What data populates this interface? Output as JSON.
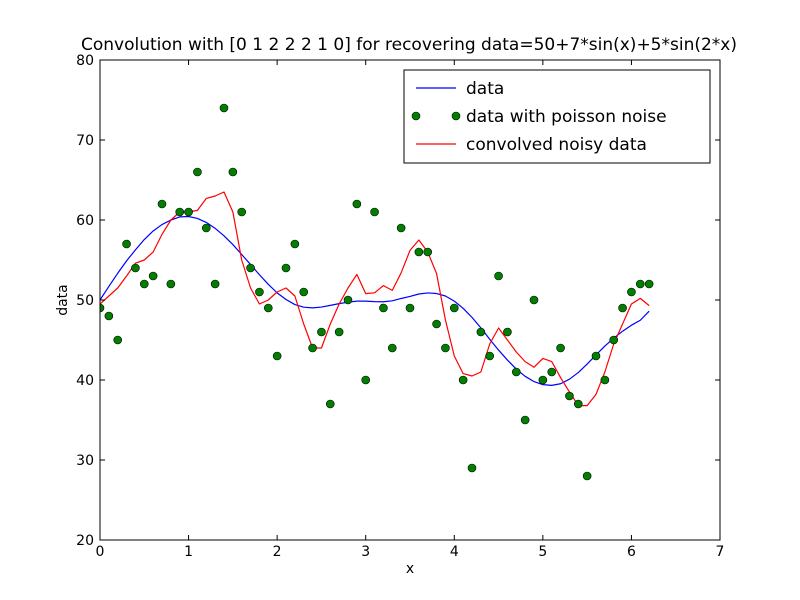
{
  "chart_data": {
    "type": "line",
    "title": "Convolution with [0 1 2 2 2 1 0] for recovering data=50+7*sin(x)+5*sin(2*x)",
    "xlabel": "x",
    "ylabel": "data",
    "xlim": [
      0,
      7
    ],
    "ylim": [
      20,
      80
    ],
    "xticks": [
      0,
      1,
      2,
      3,
      4,
      5,
      6,
      7
    ],
    "yticks": [
      20,
      30,
      40,
      50,
      60,
      70,
      80
    ],
    "grid": false,
    "legend_placement": "top-right",
    "series": [
      {
        "name": "data",
        "kind": "line",
        "color": "#0000ff",
        "x": [
          0.0,
          0.1,
          0.2,
          0.3,
          0.4,
          0.5,
          0.6,
          0.7,
          0.8,
          0.9,
          1.0,
          1.1,
          1.2,
          1.3,
          1.4,
          1.5,
          1.6,
          1.7,
          1.8,
          1.9,
          2.0,
          2.1,
          2.2,
          2.3,
          2.4,
          2.5,
          2.6,
          2.7,
          2.8,
          2.9,
          3.0,
          3.1,
          3.2,
          3.3,
          3.4,
          3.5,
          3.6,
          3.7,
          3.8,
          3.9,
          4.0,
          4.1,
          4.2,
          4.3,
          4.4,
          4.5,
          4.6,
          4.7,
          4.8,
          4.9,
          5.0,
          5.1,
          5.2,
          5.3,
          5.4,
          5.5,
          5.6,
          5.7,
          5.8,
          5.9,
          6.0,
          6.1,
          6.2
        ],
        "y": [
          50.0,
          51.69,
          53.34,
          54.89,
          56.27,
          57.56,
          58.63,
          59.43,
          60.0,
          60.39,
          60.44,
          60.2,
          59.7,
          58.96,
          58.02,
          56.93,
          55.69,
          54.43,
          53.16,
          51.96,
          50.89,
          50.06,
          49.43,
          49.1,
          49.02,
          49.12,
          49.33,
          49.55,
          49.73,
          49.86,
          49.86,
          49.8,
          49.78,
          49.9,
          50.19,
          50.45,
          50.75,
          50.88,
          50.81,
          50.5,
          49.86,
          48.96,
          47.83,
          46.52,
          45.1,
          43.74,
          42.49,
          41.37,
          40.46,
          39.8,
          39.42,
          39.33,
          39.53,
          40.1,
          40.93,
          41.99,
          43.13,
          44.24,
          45.23,
          46.1,
          46.85,
          47.47,
          48.6
        ]
      },
      {
        "name": "data with poisson noise",
        "kind": "scatter",
        "color": "#007f00",
        "x": [
          0.0,
          0.1,
          0.2,
          0.3,
          0.4,
          0.5,
          0.6,
          0.7,
          0.8,
          0.9,
          1.0,
          1.1,
          1.2,
          1.3,
          1.4,
          1.5,
          1.6,
          1.7,
          1.8,
          1.9,
          2.0,
          2.1,
          2.2,
          2.3,
          2.4,
          2.5,
          2.6,
          2.7,
          2.8,
          2.9,
          3.0,
          3.1,
          3.2,
          3.3,
          3.4,
          3.5,
          3.6,
          3.7,
          3.8,
          3.9,
          4.0,
          4.1,
          4.2,
          4.3,
          4.4,
          4.5,
          4.6,
          4.7,
          4.8,
          4.9,
          5.0,
          5.1,
          5.2,
          5.3,
          5.4,
          5.5,
          5.6,
          5.7,
          5.8,
          5.9,
          6.0,
          6.1,
          6.2
        ],
        "y": [
          49,
          48,
          45,
          57,
          54,
          52,
          53,
          62,
          52,
          61,
          61,
          66,
          59,
          52,
          74,
          66,
          61,
          54,
          51,
          49,
          43,
          54,
          57,
          51,
          44,
          46,
          37,
          46,
          50,
          62,
          40,
          61,
          49,
          44,
          59,
          49,
          56,
          56,
          47,
          44,
          49,
          40,
          29,
          46,
          43,
          53,
          46,
          41,
          35,
          50,
          40,
          41,
          44,
          38,
          37,
          28,
          43,
          40,
          45,
          49,
          51,
          52,
          52
        ]
      },
      {
        "name": "convolved noisy data",
        "kind": "line",
        "color": "#ff0000",
        "x": [
          0.0,
          0.1,
          0.2,
          0.3,
          0.4,
          0.5,
          0.6,
          0.7,
          0.8,
          0.9,
          1.0,
          1.1,
          1.2,
          1.3,
          1.4,
          1.5,
          1.6,
          1.7,
          1.8,
          1.9,
          2.0,
          2.1,
          2.2,
          2.3,
          2.4,
          2.5,
          2.6,
          2.7,
          2.8,
          2.9,
          3.0,
          3.1,
          3.2,
          3.3,
          3.4,
          3.5,
          3.6,
          3.7,
          3.8,
          3.9,
          4.0,
          4.1,
          4.2,
          4.3,
          4.4,
          4.5,
          4.6,
          4.7,
          4.8,
          4.9,
          5.0,
          5.1,
          5.2,
          5.3,
          5.4,
          5.5,
          5.6,
          5.7,
          5.8,
          5.9,
          6.0,
          6.1,
          6.2
        ],
        "y": [
          49.5,
          50.5,
          51.5,
          53.0,
          54.6,
          55.0,
          56.0,
          58.2,
          60.0,
          61.0,
          61.0,
          61.2,
          62.7,
          63.0,
          63.5,
          61.0,
          55.0,
          51.5,
          49.5,
          50.0,
          51.0,
          51.5,
          50.5,
          47.0,
          44.0,
          44.0,
          47.0,
          49.5,
          51.5,
          53.2,
          50.8,
          50.9,
          51.8,
          51.2,
          53.4,
          56.2,
          57.5,
          56.0,
          53.3,
          47.5,
          43.0,
          40.8,
          40.5,
          41.0,
          44.5,
          46.5,
          45.0,
          43.5,
          42.3,
          41.6,
          42.7,
          42.3,
          40.3,
          38.5,
          36.8,
          36.8,
          38.2,
          41.0,
          44.5,
          47.0,
          49.5,
          50.2,
          49.3
        ]
      }
    ]
  }
}
